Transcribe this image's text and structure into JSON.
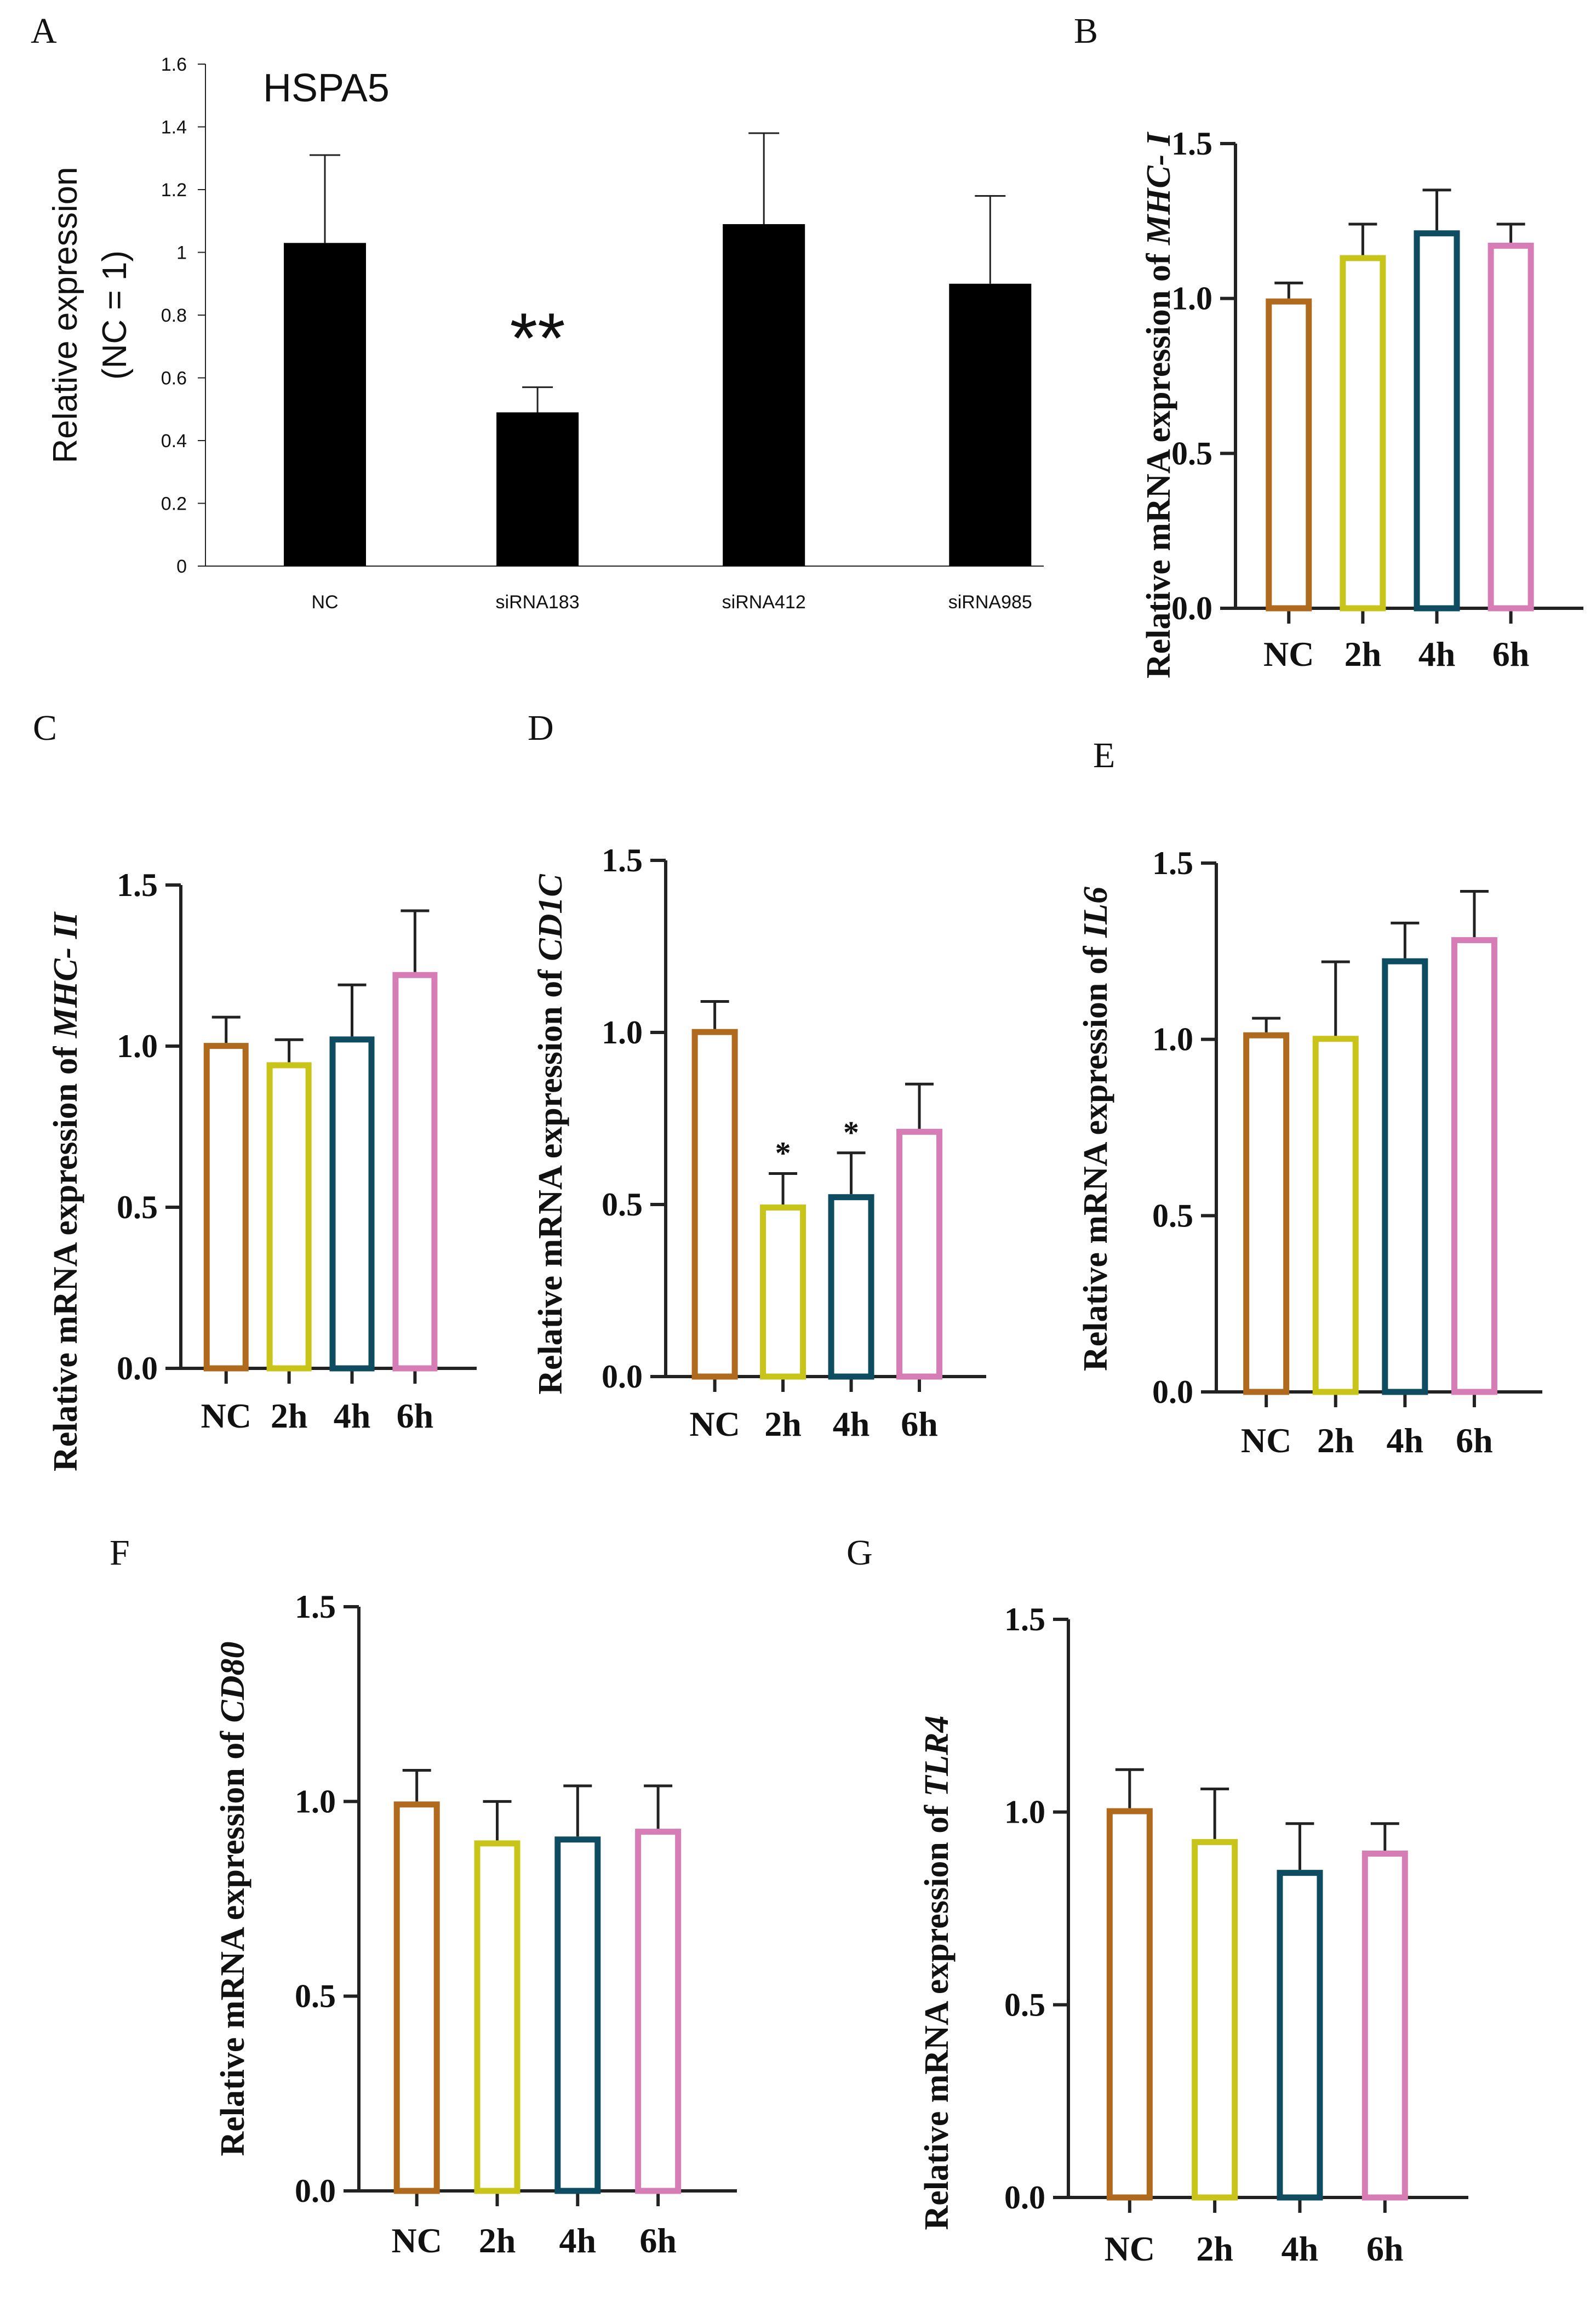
{
  "colors": {
    "NC": "#b06a1e",
    "2h": "#c8c41a",
    "4h": "#0e4d61",
    "6h": "#d77db6",
    "panelA_bar": "#000000",
    "axis": "#222222"
  },
  "chart_data": [
    {
      "panel": "A",
      "type": "bar",
      "title": "HSPA5",
      "ylabel_line1": "Relative expression",
      "ylabel_line2": "(NC = 1)",
      "xlabel": "",
      "categories": [
        "NC",
        "siRNA183",
        "siRNA412",
        "siRNA985"
      ],
      "values": [
        1.03,
        0.49,
        1.09,
        0.9
      ],
      "errors": [
        0.28,
        0.08,
        0.29,
        0.28
      ],
      "significance": [
        "",
        "**",
        "",
        ""
      ],
      "ylim": [
        0,
        1.6
      ],
      "yticks": [
        0,
        0.2,
        0.4,
        0.6,
        0.8,
        1,
        1.2,
        1.4,
        1.6
      ],
      "ytick_labels": [
        "0",
        "0.2",
        "0.4",
        "0.6",
        "0.8",
        "1",
        "1.2",
        "1.4",
        "1.6"
      ],
      "fill": "solid",
      "grid": false
    },
    {
      "panel": "B",
      "type": "bar",
      "ylabel_prefix": "Relative mRNA expression of ",
      "ylabel_gene": "MHC- I",
      "categories": [
        "NC",
        "2h",
        "4h",
        "6h"
      ],
      "values": [
        1.0,
        1.14,
        1.22,
        1.18
      ],
      "errors": [
        0.05,
        0.1,
        0.13,
        0.06
      ],
      "significance": [
        "",
        "",
        "",
        ""
      ],
      "ylim": [
        0,
        1.5
      ],
      "yticks": [
        0,
        0.5,
        1.0,
        1.5
      ],
      "ytick_labels": [
        "0.0",
        "0.5",
        "1.0",
        "1.5"
      ],
      "fill": "outline",
      "grid": false
    },
    {
      "panel": "C",
      "type": "bar",
      "ylabel_prefix": "Relative mRNA expression of ",
      "ylabel_gene": "MHC- II",
      "categories": [
        "NC",
        "2h",
        "4h",
        "6h"
      ],
      "values": [
        1.01,
        0.95,
        1.03,
        1.23
      ],
      "errors": [
        0.08,
        0.07,
        0.16,
        0.19
      ],
      "significance": [
        "",
        "",
        "",
        ""
      ],
      "ylim": [
        0,
        1.5
      ],
      "yticks": [
        0,
        0.5,
        1.0,
        1.5
      ],
      "ytick_labels": [
        "0.0",
        "0.5",
        "1.0",
        "1.5"
      ],
      "fill": "outline",
      "grid": false
    },
    {
      "panel": "D",
      "type": "bar",
      "ylabel_prefix": "Relative mRNA expression of ",
      "ylabel_gene": "CD1C",
      "categories": [
        "NC",
        "2h",
        "4h",
        "6h"
      ],
      "values": [
        1.01,
        0.5,
        0.53,
        0.72
      ],
      "errors": [
        0.08,
        0.09,
        0.12,
        0.13
      ],
      "significance": [
        "",
        "*",
        "*",
        ""
      ],
      "ylim": [
        0,
        1.5
      ],
      "yticks": [
        0,
        0.5,
        1.0,
        1.5
      ],
      "ytick_labels": [
        "0.0",
        "0.5",
        "1.0",
        "1.5"
      ],
      "fill": "outline",
      "grid": false
    },
    {
      "panel": "E",
      "type": "bar",
      "ylabel_prefix": "Relative mRNA expression of ",
      "ylabel_gene": "IL6",
      "categories": [
        "NC",
        "2h",
        "4h",
        "6h"
      ],
      "values": [
        1.02,
        1.01,
        1.23,
        1.29
      ],
      "errors": [
        0.04,
        0.21,
        0.1,
        0.13
      ],
      "significance": [
        "",
        "",
        "",
        ""
      ],
      "ylim": [
        0,
        1.5
      ],
      "yticks": [
        0,
        0.5,
        1.0,
        1.5
      ],
      "ytick_labels": [
        "0.0",
        "0.5",
        "1.0",
        "1.5"
      ],
      "fill": "outline",
      "grid": false
    },
    {
      "panel": "F",
      "type": "bar",
      "ylabel_prefix": "Relative mRNA expression of ",
      "ylabel_gene": "CD80",
      "categories": [
        "NC",
        "2h",
        "4h",
        "6h"
      ],
      "values": [
        1.0,
        0.9,
        0.91,
        0.93
      ],
      "errors": [
        0.08,
        0.1,
        0.13,
        0.11
      ],
      "significance": [
        "",
        "",
        "",
        ""
      ],
      "ylim": [
        0,
        1.5
      ],
      "yticks": [
        0,
        0.5,
        1.0,
        1.5
      ],
      "ytick_labels": [
        "0.0",
        "0.5",
        "1.0",
        "1.5"
      ],
      "fill": "outline",
      "grid": false
    },
    {
      "panel": "G",
      "type": "bar",
      "ylabel_prefix": "Relative mRNA expression of ",
      "ylabel_gene": "TLR4",
      "categories": [
        "NC",
        "2h",
        "4h",
        "6h"
      ],
      "values": [
        1.01,
        0.93,
        0.85,
        0.9
      ],
      "errors": [
        0.1,
        0.13,
        0.12,
        0.07
      ],
      "significance": [
        "",
        "",
        "",
        ""
      ],
      "ylim": [
        0,
        1.5
      ],
      "yticks": [
        0,
        0.5,
        1.0,
        1.5
      ],
      "ytick_labels": [
        "0.0",
        "0.5",
        "1.0",
        "1.5"
      ],
      "fill": "outline",
      "grid": false
    }
  ]
}
